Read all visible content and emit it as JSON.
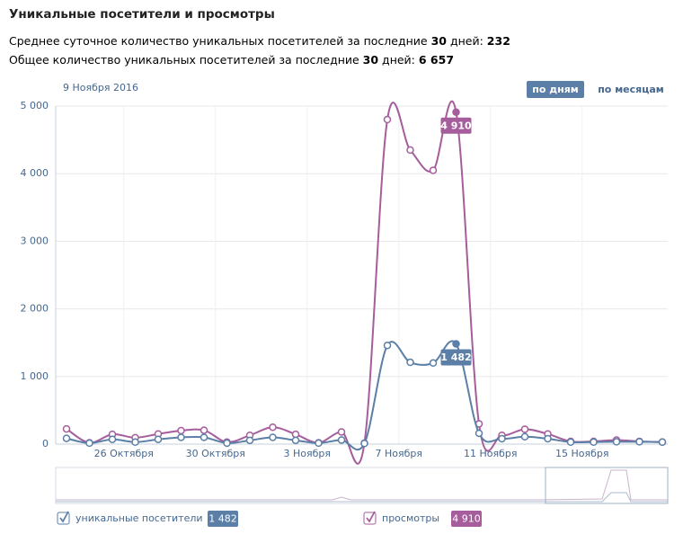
{
  "header": {
    "title": "Уникальные посетители и просмотры",
    "line1": {
      "text": "Среднее суточное количество уникальных посетителей за последние ",
      "days": "30",
      "days_suffix": " дней: ",
      "value": "232"
    },
    "line2": {
      "text": "Общее количество уникальных посетителей за последние ",
      "days": "30",
      "days_suffix": " дней: ",
      "value": "6 657"
    }
  },
  "controls": {
    "selected_date": "9 Ноября 2016",
    "by_days": "по дням",
    "by_months": "по месяцам"
  },
  "chart_data": {
    "type": "line",
    "categories": [
      null,
      null,
      null,
      "26 Октября",
      null,
      null,
      null,
      "30 Октября",
      null,
      null,
      null,
      "3 Ноября",
      null,
      null,
      null,
      "7 Ноября",
      null,
      null,
      null,
      "11 Ноября",
      null,
      null,
      null,
      "15 Ноября",
      null,
      null,
      null
    ],
    "series": [
      {
        "name": "уникальные посетители",
        "color": "#5b7fa6",
        "values": [
          85,
          15,
          70,
          30,
          70,
          100,
          100,
          15,
          55,
          100,
          55,
          15,
          60,
          10,
          1460,
          1210,
          1200,
          1482,
          160,
          80,
          110,
          80,
          30,
          30,
          35,
          35,
          30
        ],
        "value_labels": [
          null,
          null,
          null,
          null,
          null,
          null,
          null,
          null,
          null,
          null,
          null,
          null,
          null,
          null,
          null,
          null,
          null,
          "1 482",
          null,
          null,
          null,
          null,
          null,
          null,
          null,
          null,
          null
        ]
      },
      {
        "name": "просмотры",
        "color": "#a55d9c",
        "values": [
          225,
          20,
          145,
          95,
          150,
          200,
          205,
          30,
          130,
          250,
          145,
          20,
          180,
          15,
          4800,
          4350,
          4050,
          4910,
          300,
          130,
          220,
          150,
          40,
          40,
          60,
          40,
          30
        ],
        "value_labels": [
          null,
          null,
          null,
          null,
          null,
          null,
          null,
          null,
          null,
          null,
          null,
          null,
          null,
          null,
          null,
          null,
          null,
          "4 910",
          null,
          null,
          null,
          null,
          null,
          null,
          null,
          null,
          null
        ]
      }
    ],
    "ylim": [
      0,
      5000
    ],
    "yticks": [
      0,
      {
        "value": 1000,
        "label": "1 000"
      },
      {
        "value": 2000,
        "label": "2 000"
      },
      {
        "value": 3000,
        "label": "3 000"
      },
      {
        "value": 4000,
        "label": "4 000"
      },
      {
        "value": 5000,
        "label": "5 000"
      }
    ],
    "grid": true
  }
}
